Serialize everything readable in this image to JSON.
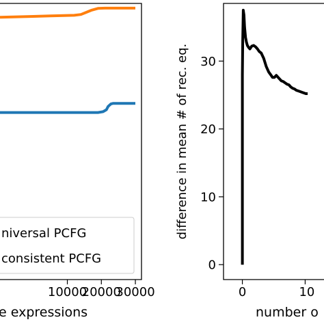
{
  "chart_data": [
    {
      "type": "line",
      "title": "",
      "xlabel": "e expressions",
      "ylabel": "",
      "xlim": [
        -9800,
        31800
      ],
      "ylim": [
        0,
        1
      ],
      "grid": false,
      "x_ticks": [
        {
          "value": 20000,
          "label": "20000"
        },
        {
          "value": 30000,
          "label": "30000"
        }
      ],
      "x_tick_partial": {
        "value": 10000,
        "label": "10000"
      },
      "legend": {
        "placement": "bottom-left",
        "entries": [
          "Universal PCFG",
          "Inconsistent PCFG"
        ],
        "visible_text": [
          "niversal PCFG",
          "consistent PCFG"
        ]
      },
      "series": [
        {
          "name": "Universal PCFG",
          "color": "#ff7f0e",
          "x": [
            -9800,
            0,
            5000,
            9000,
            12000,
            14000,
            17000,
            19000,
            21000,
            23000,
            26000,
            30000
          ],
          "y": [
            0.95,
            0.953,
            0.955,
            0.956,
            0.957,
            0.96,
            0.975,
            0.982,
            0.983,
            0.983,
            0.983,
            0.983
          ]
        },
        {
          "name": "Inconsistent PCFG",
          "color": "#1f77b4",
          "x": [
            -9800,
            0,
            10000,
            19000,
            20500,
            21500,
            22000,
            22800,
            23500,
            25000,
            30000
          ],
          "y": [
            0.605,
            0.605,
            0.605,
            0.605,
            0.608,
            0.615,
            0.627,
            0.636,
            0.638,
            0.638,
            0.638
          ]
        }
      ]
    },
    {
      "type": "line",
      "title": "",
      "xlabel": "number o",
      "ylabel": "difference in mean # of rec. eq.",
      "xlim": [
        -3000,
        13000
      ],
      "ylim": [
        -2.2,
        38.5
      ],
      "grid": false,
      "y_ticks": [
        0,
        10,
        20,
        30
      ],
      "x_ticks": [
        {
          "value": 0,
          "label": "0"
        }
      ],
      "x_tick_partial": {
        "value": 10000,
        "label": "10"
      },
      "series": [
        {
          "name": "",
          "color": "#000000",
          "x": [
            0,
            0,
            60,
            150,
            250,
            350,
            500,
            650,
            800,
            1000,
            1200,
            1500,
            1800,
            2100,
            2400,
            2700,
            3000,
            3400,
            3800,
            4200,
            4500,
            4800,
            5100,
            5400,
            5700,
            6000,
            6200,
            6500,
            6800,
            7100,
            7400,
            7700,
            8000,
            8300,
            8600,
            8900,
            9200,
            9500,
            9800,
            10100,
            10400
          ],
          "y": [
            0,
            28,
            33,
            37.5,
            36.8,
            35,
            33.5,
            32.8,
            32.3,
            32.0,
            31.8,
            32.2,
            32.3,
            32.1,
            31.8,
            31.4,
            31.2,
            30.4,
            29.2,
            28.4,
            28.0,
            27.6,
            27.6,
            27.9,
            27.6,
            27.3,
            27.1,
            27.0,
            26.8,
            26.6,
            26.5,
            26.2,
            26.0,
            25.9,
            25.7,
            25.6,
            25.5,
            25.4,
            25.3,
            25.2,
            25.2
          ]
        }
      ]
    }
  ]
}
